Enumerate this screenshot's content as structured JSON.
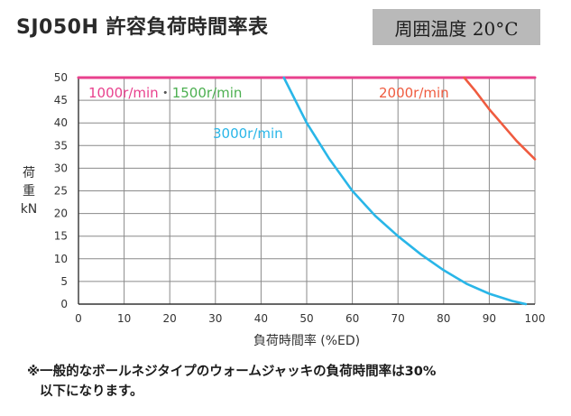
{
  "header": {
    "title": "SJ050H 許容負荷時間率表",
    "condition": "周囲温度 20°C"
  },
  "footnote": {
    "line1": "※一般的なボールネジタイプのウォームジャッキの負荷時間率は30%",
    "line2": "以下になります。"
  },
  "chart_data": {
    "type": "line",
    "title": "SJ050H 許容負荷時間率表",
    "xlabel": "負荷時間率 (%ED)",
    "ylabel": "荷重 kN",
    "xlim": [
      0,
      100
    ],
    "ylim": [
      0,
      50
    ],
    "x_ticks": [
      0,
      10,
      20,
      30,
      40,
      50,
      60,
      70,
      80,
      90,
      100
    ],
    "y_ticks": [
      0,
      5,
      10,
      15,
      20,
      25,
      30,
      35,
      40,
      45,
      50
    ],
    "grid": true,
    "series": [
      {
        "name": "1000r/min・1500r/min",
        "label_parts": [
          "1000r/min",
          "・",
          "1500r/min"
        ],
        "label_colors": [
          "#e8418d",
          "#555555",
          "#4caf50"
        ],
        "color": "#e8418d",
        "points": [
          [
            0,
            50
          ],
          [
            100,
            50
          ]
        ]
      },
      {
        "name": "3000r/min",
        "color": "#29b6e8",
        "points": [
          [
            45,
            50
          ],
          [
            50,
            40
          ],
          [
            55,
            32
          ],
          [
            60,
            25
          ],
          [
            65,
            19.5
          ],
          [
            70,
            15
          ],
          [
            75,
            11
          ],
          [
            80,
            7.5
          ],
          [
            85,
            4.5
          ],
          [
            90,
            2.3
          ],
          [
            95,
            0.7
          ],
          [
            98,
            0
          ]
        ]
      },
      {
        "name": "2000r/min",
        "color": "#ef5b3f",
        "points": [
          [
            84.5,
            50
          ],
          [
            87,
            47
          ],
          [
            90,
            43
          ],
          [
            93,
            39.5
          ],
          [
            96,
            36
          ],
          [
            100,
            32
          ]
        ]
      }
    ],
    "colors": {
      "grid": "#8a8a8a",
      "axis": "#333333",
      "tick_label": "#333333"
    }
  }
}
